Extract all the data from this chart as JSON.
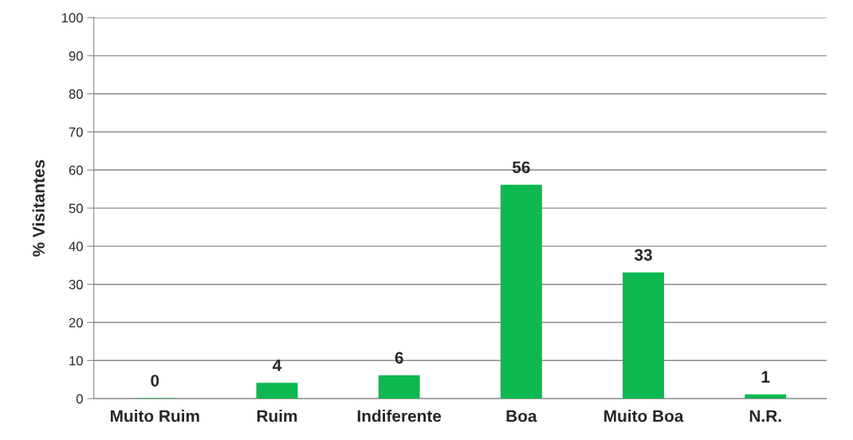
{
  "chart_data": {
    "type": "bar",
    "ylabel": "% Visitantes",
    "categories": [
      "Muito Ruim",
      "Ruim",
      "Indiferente",
      "Boa",
      "Muito Boa",
      "N.R."
    ],
    "values": [
      0,
      4,
      6,
      56,
      33,
      1
    ],
    "color": "#0cb84f",
    "ylim": [
      0,
      100
    ],
    "yticks": [
      0,
      10,
      20,
      30,
      40,
      50,
      60,
      70,
      80,
      90,
      100
    ],
    "grid": "y",
    "data_labels": true
  }
}
